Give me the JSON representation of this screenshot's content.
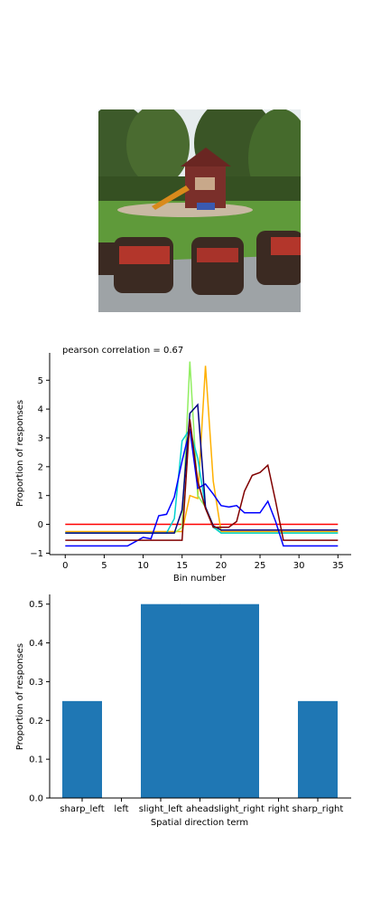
{
  "photo": {
    "name": "backyard-playground-photo",
    "colors": {
      "sky": "#e8eef0",
      "trees": "#3d5a2a",
      "lawn": "#5f9a3a",
      "patio": "#9ea3a6",
      "chair": "#3b2a22",
      "cushion": "#b3362b",
      "fort": "#7a2f2a",
      "slide": "#d98a1c"
    }
  },
  "chart_data": [
    {
      "type": "line",
      "title": "pearson correlation = 0.67",
      "xlabel": "Bin number",
      "ylabel": "Proportion of responses",
      "xlim": [
        -2,
        36.7
      ],
      "ylim": [
        -1.05,
        5.95
      ],
      "xticks": [
        0,
        5,
        10,
        15,
        20,
        25,
        30,
        35
      ],
      "yticks": [
        -1,
        0,
        1,
        2,
        3,
        4,
        5
      ],
      "grid": false,
      "x": [
        0,
        1,
        2,
        3,
        4,
        5,
        6,
        7,
        8,
        9,
        10,
        11,
        12,
        13,
        14,
        15,
        16,
        17,
        18,
        19,
        20,
        21,
        22,
        23,
        24,
        25,
        26,
        27,
        28,
        29,
        30,
        31,
        32,
        33,
        34,
        35
      ],
      "series": [
        {
          "color": "#ff0000",
          "values": [
            0,
            0,
            0,
            0,
            0,
            0,
            0,
            0,
            0,
            0,
            0,
            0,
            0,
            0,
            0,
            0,
            0,
            0,
            0,
            0,
            0,
            0,
            0,
            0,
            0,
            0,
            0,
            0,
            0,
            0,
            0,
            0,
            0,
            0,
            0,
            0
          ]
        },
        {
          "color": "#ffb000",
          "values": [
            -0.25,
            -0.25,
            -0.25,
            -0.25,
            -0.25,
            -0.25,
            -0.25,
            -0.25,
            -0.25,
            -0.25,
            -0.25,
            -0.25,
            -0.25,
            -0.25,
            -0.25,
            -0.25,
            1.0,
            0.9,
            5.5,
            1.5,
            -0.25,
            -0.25,
            -0.25,
            -0.25,
            -0.25,
            -0.25,
            -0.25,
            -0.25,
            -0.25,
            -0.25,
            -0.25,
            -0.25,
            -0.25,
            -0.25,
            -0.25,
            -0.25
          ]
        },
        {
          "color": "#90ee60",
          "values": [
            -0.3,
            -0.3,
            -0.3,
            -0.3,
            -0.3,
            -0.3,
            -0.3,
            -0.3,
            -0.3,
            -0.3,
            -0.3,
            -0.3,
            -0.3,
            -0.3,
            -0.3,
            -0.1,
            5.65,
            1.0,
            0.6,
            -0.05,
            -0.3,
            -0.3,
            -0.3,
            -0.3,
            -0.3,
            -0.3,
            -0.3,
            -0.3,
            -0.3,
            -0.3,
            -0.3,
            -0.3,
            -0.3,
            -0.3,
            -0.3,
            -0.3
          ]
        },
        {
          "color": "#00d0d0",
          "values": [
            -0.3,
            -0.3,
            -0.3,
            -0.3,
            -0.3,
            -0.3,
            -0.3,
            -0.3,
            -0.3,
            -0.3,
            -0.3,
            -0.3,
            -0.3,
            -0.3,
            0.2,
            2.9,
            3.3,
            2.3,
            0.6,
            -0.1,
            -0.3,
            -0.3,
            -0.3,
            -0.3,
            -0.3,
            -0.3,
            -0.3,
            -0.3,
            -0.3,
            -0.3,
            -0.3,
            -0.3,
            -0.3,
            -0.3,
            -0.3,
            -0.3
          ]
        },
        {
          "color": "#0000ff",
          "values": [
            -0.75,
            -0.75,
            -0.75,
            -0.75,
            -0.75,
            -0.75,
            -0.75,
            -0.75,
            -0.75,
            -0.6,
            -0.45,
            -0.5,
            0.3,
            0.35,
            0.95,
            2.2,
            3.3,
            1.25,
            1.4,
            1.05,
            0.65,
            0.6,
            0.65,
            0.4,
            0.4,
            0.4,
            0.8,
            0.1,
            -0.75,
            -0.75,
            -0.75,
            -0.75,
            -0.75,
            -0.75,
            -0.75,
            -0.75
          ]
        },
        {
          "color": "#000080",
          "values": [
            -0.3,
            -0.3,
            -0.3,
            -0.3,
            -0.3,
            -0.3,
            -0.3,
            -0.3,
            -0.3,
            -0.3,
            -0.3,
            -0.3,
            -0.3,
            -0.3,
            -0.3,
            0.5,
            3.85,
            4.15,
            0.6,
            -0.05,
            -0.2,
            -0.2,
            -0.2,
            -0.2,
            -0.2,
            -0.2,
            -0.2,
            -0.2,
            -0.2,
            -0.2,
            -0.2,
            -0.2,
            -0.2,
            -0.2,
            -0.2,
            -0.2
          ]
        },
        {
          "color": "#800000",
          "values": [
            -0.55,
            -0.55,
            -0.55,
            -0.55,
            -0.55,
            -0.55,
            -0.55,
            -0.55,
            -0.55,
            -0.55,
            -0.55,
            -0.55,
            -0.55,
            -0.55,
            -0.55,
            -0.55,
            3.65,
            1.5,
            0.55,
            -0.1,
            -0.1,
            -0.1,
            0.1,
            1.15,
            1.7,
            1.8,
            2.05,
            0.8,
            -0.55,
            -0.55,
            -0.55,
            -0.55,
            -0.55,
            -0.55,
            -0.55,
            -0.55
          ]
        }
      ]
    },
    {
      "type": "bar",
      "xlabel": "Spatial direction term",
      "ylabel": "Proportion of responses",
      "categories": [
        "sharp_left",
        "left",
        "slight_left",
        "ahead",
        "slight_right",
        "right",
        "sharp_right"
      ],
      "values": [
        0.25,
        0,
        0.5,
        0.5,
        0.5,
        0,
        0.25
      ],
      "ylim": [
        0,
        0.525
      ],
      "yticks": [
        0.0,
        0.1,
        0.2,
        0.3,
        0.4,
        0.5
      ],
      "color": "#1f77b4",
      "grid": false
    }
  ]
}
